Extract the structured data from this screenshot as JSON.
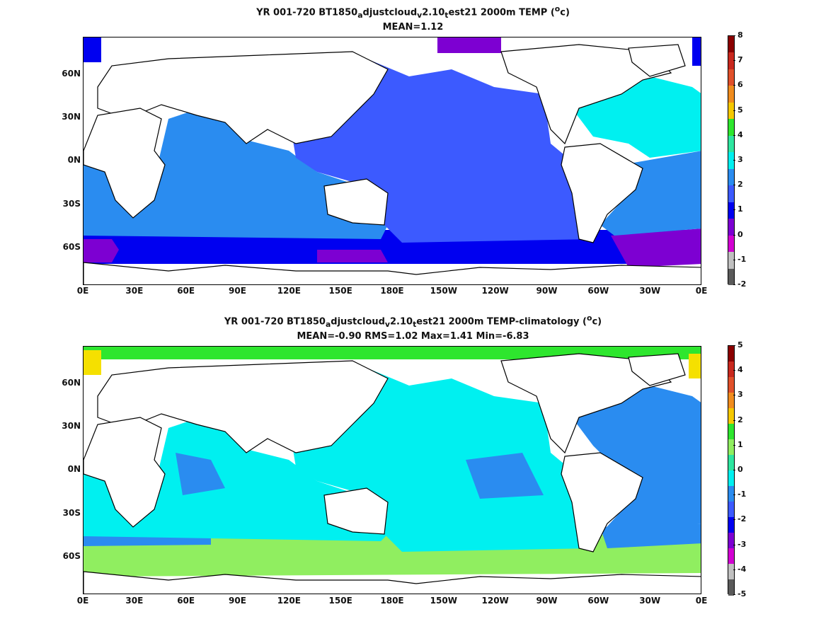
{
  "plots": [
    {
      "title_prefix": "YR 001-720 BT1850",
      "title_sub1": "a",
      "title_mid1": "djustcloud",
      "title_sub2": "v",
      "title_mid2": "2.10",
      "title_sub3": "t",
      "title_mid3": "est21 2000m TEMP (",
      "title_sup": "o",
      "title_end": "c)",
      "stats": "MEAN=1.12",
      "colorbar_ticks": [
        "8",
        "7",
        "6",
        "5",
        "4",
        "3",
        "2",
        "1",
        "0",
        "-1",
        "-2"
      ],
      "colorbar_colors": [
        "#8b0000",
        "#c8281e",
        "#e0502a",
        "#f08c1e",
        "#f5c800",
        "#2ee62e",
        "#2ee6a0",
        "#00f0f0",
        "#2a8cf0",
        "#3c5aff",
        "#0000f0",
        "#7d00d2",
        "#d200d2",
        "#c0c0c0",
        "#5a5a5a"
      ]
    },
    {
      "title_prefix": "YR 001-720 BT1850",
      "title_sub1": "a",
      "title_mid1": "djustcloud",
      "title_sub2": "v",
      "title_mid2": "2.10",
      "title_sub3": "t",
      "title_mid3": "est21 2000m TEMP-climatology (",
      "title_sup": "o",
      "title_end": "c)",
      "stats": "MEAN=-0.90   RMS=1.02   Max=1.41   Min=-6.83",
      "colorbar_ticks": [
        "5",
        "4",
        "3",
        "2",
        "1",
        "0",
        "-1",
        "-2",
        "-3",
        "-4",
        "-5"
      ],
      "colorbar_colors": [
        "#8b0000",
        "#c8281e",
        "#e0502a",
        "#f08c1e",
        "#f5c800",
        "#2ee62e",
        "#90ee60",
        "#2ee6a0",
        "#00f0f0",
        "#2a8cf0",
        "#3c5aff",
        "#0000f0",
        "#7d00d2",
        "#d200d2",
        "#c0c0c0",
        "#5a5a5a"
      ]
    }
  ],
  "map": {
    "lat_labels": [
      "60N",
      "30N",
      "0N",
      "30S",
      "60S"
    ],
    "lon_labels": [
      "0E",
      "30E",
      "60E",
      "90E",
      "120E",
      "150E",
      "180E",
      "150W",
      "120W",
      "90W",
      "60W",
      "30W",
      "0E"
    ],
    "ocean_colors_top": {
      "pacific": "#3c5aff",
      "indian": "#2a8cf0",
      "atlantic_n": "#00f0f0",
      "atlantic_s": "#2a8cf0",
      "southern": "#0000f0",
      "arctic": "#7d00d2"
    },
    "ocean_colors_bottom": {
      "main": "#00f0f0",
      "band": "#2a8cf0",
      "southern": "#90ee60",
      "arctic": "#2ee62e",
      "yellow": "#f5e000"
    }
  }
}
